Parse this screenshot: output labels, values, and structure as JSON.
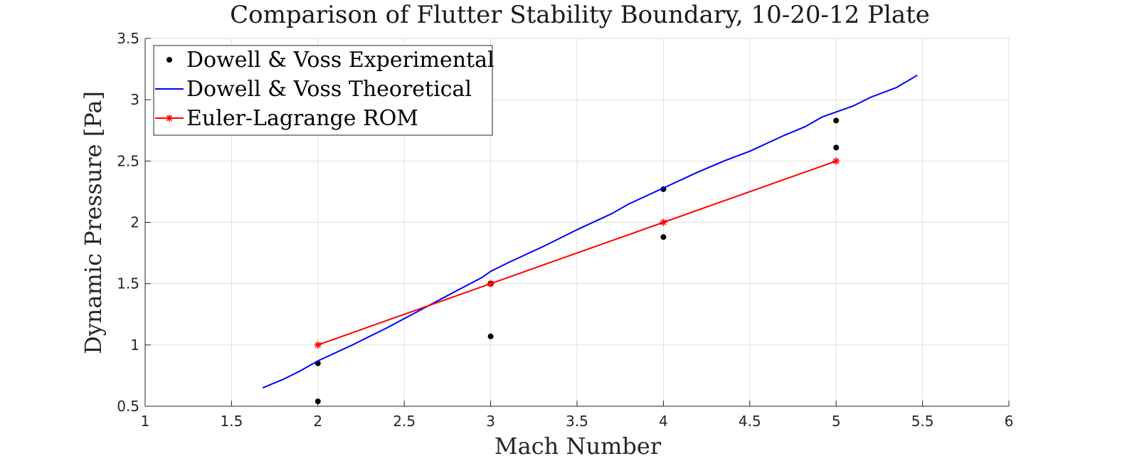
{
  "chart_data": {
    "type": "line",
    "title": "Comparison of Flutter Stability Boundary, 10-20-12 Plate",
    "xlabel": "Mach Number",
    "ylabel": "Dynamic Pressure [Pa]",
    "xlim": [
      1,
      6
    ],
    "ylim": [
      0.5,
      3.5
    ],
    "x_ticks": [
      1,
      1.5,
      2,
      2.5,
      3,
      3.5,
      4,
      4.5,
      5,
      5.5,
      6
    ],
    "x_tick_labels": [
      "1",
      "1.5",
      "2",
      "2.5",
      "3",
      "3.5",
      "4",
      "4.5",
      "5",
      "5.5",
      "6"
    ],
    "y_ticks": [
      0.5,
      1,
      1.5,
      2,
      2.5,
      3,
      3.5
    ],
    "y_tick_labels": [
      "0.5",
      "1",
      "1.5",
      "2",
      "2.5",
      "3",
      "3.5"
    ],
    "grid": true,
    "legend_position": "top-left",
    "series": [
      {
        "name": "Dowell & Voss Experimental",
        "style": "marker",
        "color": "#000000",
        "points": [
          [
            2,
            0.85
          ],
          [
            2,
            0.54
          ],
          [
            3,
            1.07
          ],
          [
            3,
            1.5
          ],
          [
            4,
            2.27
          ],
          [
            4,
            1.88
          ],
          [
            5,
            2.83
          ],
          [
            5,
            2.61
          ]
        ]
      },
      {
        "name": "Dowell & Voss Theoretical",
        "style": "line",
        "color": "#0000ff",
        "points": [
          [
            1.68,
            0.65
          ],
          [
            1.8,
            0.72
          ],
          [
            1.9,
            0.79
          ],
          [
            2.0,
            0.87
          ],
          [
            2.2,
            1.0
          ],
          [
            2.4,
            1.14
          ],
          [
            2.6,
            1.29
          ],
          [
            2.8,
            1.44
          ],
          [
            2.95,
            1.55
          ],
          [
            3.0,
            1.6
          ],
          [
            3.1,
            1.67
          ],
          [
            3.3,
            1.8
          ],
          [
            3.5,
            1.94
          ],
          [
            3.7,
            2.07
          ],
          [
            3.8,
            2.15
          ],
          [
            4.0,
            2.28
          ],
          [
            4.2,
            2.41
          ],
          [
            4.35,
            2.5
          ],
          [
            4.5,
            2.58
          ],
          [
            4.7,
            2.71
          ],
          [
            4.82,
            2.78
          ],
          [
            4.92,
            2.86
          ],
          [
            5.0,
            2.9
          ],
          [
            5.1,
            2.95
          ],
          [
            5.2,
            3.02
          ],
          [
            5.35,
            3.1
          ],
          [
            5.47,
            3.2
          ]
        ]
      },
      {
        "name": "Euler-Lagrange ROM",
        "style": "line-marker",
        "color": "#ff0000",
        "points": [
          [
            2,
            1.0
          ],
          [
            3,
            1.5
          ],
          [
            4,
            2.0
          ],
          [
            5,
            2.5
          ]
        ]
      }
    ]
  }
}
